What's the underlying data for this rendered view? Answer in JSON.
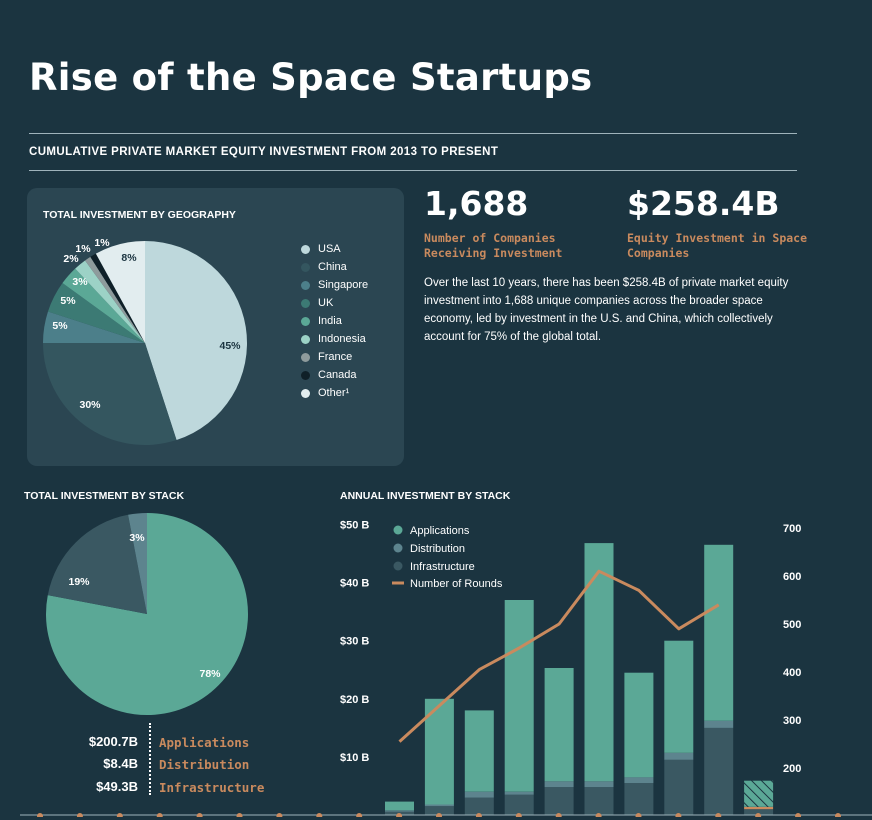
{
  "title": "Rise of the Space Startups",
  "subtitle": "CUMULATIVE PRIVATE MARKET EQUITY INVESTMENT FROM 2013 TO PRESENT",
  "stats": [
    {
      "value": "1,688",
      "label": "Number of Companies Receiving Investment"
    },
    {
      "value": "$258.4B",
      "label": "Equity Investment in Space Companies"
    }
  ],
  "description": "Over the last 10 years, there has been $258.4B of private market equity investment into 1,688 unique companies across the broader space economy, led by investment in the U.S. and China, which collectively account for 75% of the global total.",
  "colors": {
    "background": "#1b3440",
    "panel": "#2b4652",
    "accent": "#c98a5e",
    "applications": "#5ba896",
    "distribution": "#5d848e",
    "infrastructure": "#3a5862"
  },
  "chart_data": [
    {
      "type": "pie",
      "title": "TOTAL INVESTMENT BY GEOGRAPHY",
      "labels": [
        "USA",
        "China",
        "Singapore",
        "UK",
        "India",
        "Indonesia",
        "France",
        "Canada",
        "Other¹"
      ],
      "values": [
        45,
        30,
        5,
        5,
        3,
        2,
        1,
        1,
        8
      ],
      "value_labels": [
        "45%",
        "30%",
        "5%",
        "5%",
        "3%",
        "2%",
        "1%",
        "1%",
        "8%"
      ],
      "colors": [
        "#bed8dc",
        "#34565f",
        "#4c7f8a",
        "#3c7a74",
        "#5ba896",
        "#9cd2c6",
        "#8e9b9c",
        "#0f2028",
        "#e2edef"
      ],
      "legend_position": "right"
    },
    {
      "type": "pie",
      "title": "TOTAL INVESTMENT BY STACK",
      "labels": [
        "Applications",
        "Distribution",
        "Infrastructure"
      ],
      "values": [
        78,
        3,
        19
      ],
      "value_labels": [
        "78%",
        "3%",
        "19%"
      ],
      "amounts": [
        "$200.7B",
        "$8.4B",
        "$49.3B"
      ],
      "colors": [
        "#5ba896",
        "#5d848e",
        "#3a5862"
      ]
    },
    {
      "type": "bar",
      "title": "ANNUAL INVESTMENT BY STACK",
      "stacked": true,
      "categories": [
        "",
        "",
        "",
        "",
        "",
        "",
        "",
        "",
        "",
        ""
      ],
      "series": [
        {
          "name": "Infrastructure",
          "values": [
            0.6,
            1.5,
            3.0,
            3.5,
            4.8,
            4.8,
            5.5,
            9.5,
            15.0,
            1.0
          ]
        },
        {
          "name": "Distribution",
          "values": [
            0.2,
            0.3,
            1.0,
            0.5,
            1.0,
            1.0,
            1.0,
            1.2,
            1.2,
            0.4
          ]
        },
        {
          "name": "Applications",
          "values": [
            1.5,
            18.2,
            14.0,
            33.0,
            19.5,
            41.0,
            18.0,
            19.3,
            30.3,
            4.5
          ]
        }
      ],
      "line_series": {
        "name": "Number of Rounds",
        "values": [
          255,
          330,
          405,
          450,
          500,
          610,
          570,
          490,
          540
        ]
      },
      "yticks_left": [
        "$10 B",
        "$20 B",
        "$30 B",
        "$40 B",
        "$50 B"
      ],
      "yticks_right": [
        "200",
        "300",
        "400",
        "500",
        "600",
        "700"
      ],
      "ylim_left": [
        0,
        50
      ],
      "ylim_right": [
        100,
        700
      ],
      "legend_position": "top-left"
    }
  ]
}
